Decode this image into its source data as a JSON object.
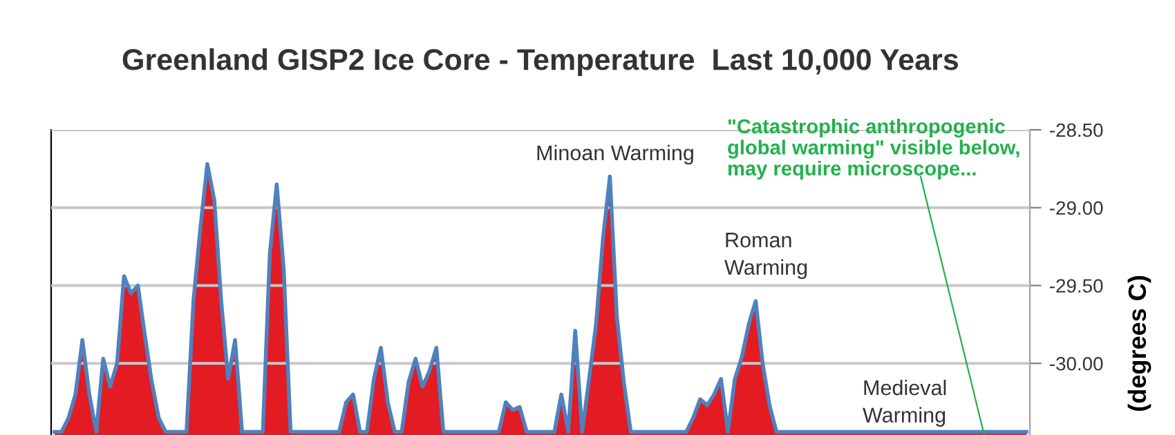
{
  "chart_data": {
    "type": "area",
    "title": "Greenland GISP2 Ice Core - Temperature  Last 10,000 Years",
    "ylabel": "(degrees C)",
    "categories": [
      null,
      null,
      null,
      null,
      null,
      null,
      null,
      null,
      null,
      null,
      null,
      null,
      null,
      null,
      null,
      null,
      null,
      null,
      null,
      null,
      null,
      null,
      null,
      null,
      null,
      null,
      null,
      null,
      null,
      null,
      null,
      null,
      null,
      null,
      null,
      null,
      null,
      null,
      null,
      null,
      null,
      null,
      null,
      null,
      null,
      null,
      null,
      null,
      null,
      null,
      null,
      null,
      null,
      null,
      null,
      null,
      null,
      null,
      null,
      null,
      null,
      null,
      null,
      null,
      null,
      null,
      null,
      null,
      null,
      null,
      null,
      null,
      null,
      null,
      null,
      null,
      null,
      null,
      null,
      null,
      null,
      null,
      null,
      null,
      null,
      null,
      null,
      null,
      null,
      null,
      null,
      null,
      null,
      null,
      null,
      null,
      null,
      null,
      null,
      null,
      null,
      null,
      null,
      null,
      null,
      null,
      null,
      null,
      null,
      null,
      null,
      null,
      null,
      null,
      null,
      null,
      null,
      null,
      null,
      null,
      null,
      null,
      null,
      null,
      null,
      null,
      null,
      null,
      null,
      null,
      null,
      null,
      null,
      null,
      null,
      null,
      null,
      null,
      null,
      null,
      null
    ],
    "series": [
      {
        "color": "#e31b23",
        "values": [
          -30.44,
          -30.44,
          -30.35,
          -30.2,
          -29.85,
          -30.2,
          -30.44,
          -29.97,
          -30.15,
          -30.0,
          -29.44,
          -29.55,
          -29.5,
          -29.82,
          -30.12,
          -30.35,
          -30.44,
          -30.44,
          -30.44,
          -30.44,
          -29.6,
          -29.13,
          -28.72,
          -28.95,
          -29.6,
          -30.1,
          -29.85,
          -30.44,
          -30.44,
          -30.44,
          -30.44,
          -29.3,
          -28.85,
          -29.39,
          -30.44,
          -30.44,
          -30.44,
          -30.44,
          -30.44,
          -30.44,
          -30.44,
          -30.44,
          -30.25,
          -30.2,
          -30.44,
          -30.44,
          -30.1,
          -29.9,
          -30.25,
          -30.44,
          -30.44,
          -30.12,
          -29.97,
          -30.15,
          -30.05,
          -29.9,
          -30.44,
          -30.44,
          -30.44,
          -30.44,
          -30.44,
          -30.44,
          -30.44,
          -30.44,
          -30.44,
          -30.25,
          -30.3,
          -30.28,
          -30.44,
          -30.44,
          -30.44,
          -30.44,
          -30.44,
          -30.2,
          -30.44,
          -29.79,
          -30.44,
          -30.1,
          -29.75,
          -29.2,
          -28.8,
          -29.7,
          -30.12,
          -30.44,
          -30.44,
          -30.44,
          -30.44,
          -30.44,
          -30.44,
          -30.44,
          -30.44,
          -30.44,
          -30.35,
          -30.23,
          -30.27,
          -30.2,
          -30.1,
          -30.44,
          -30.1,
          -29.96,
          -29.75,
          -29.6,
          -30.0,
          -30.27,
          -30.44,
          -30.44,
          -30.44,
          -30.44,
          -30.44,
          -30.44,
          -30.44,
          -30.44,
          -30.44,
          -30.44,
          -30.44,
          -30.44,
          -30.44,
          -30.44,
          -30.44,
          -30.44,
          -30.44,
          -30.44,
          -30.44,
          -30.44,
          -30.44,
          -30.44,
          -30.44,
          -30.44,
          -30.44,
          -30.44,
          -30.44,
          -30.44,
          -30.44,
          -30.44,
          -30.44,
          -30.44,
          -30.44,
          -30.44,
          -30.44,
          -30.44,
          -30.44
        ]
      },
      {
        "type": "line",
        "color": "#4f81bd",
        "values": [
          -30.44,
          -30.44,
          -30.35,
          -30.2,
          -29.85,
          -30.2,
          -30.44,
          -29.97,
          -30.15,
          -30.0,
          -29.44,
          -29.55,
          -29.5,
          -29.82,
          -30.12,
          -30.35,
          -30.44,
          -30.44,
          -30.44,
          -30.44,
          -29.6,
          -29.13,
          -28.72,
          -28.95,
          -29.6,
          -30.1,
          -29.85,
          -30.44,
          -30.44,
          -30.44,
          -30.44,
          -29.3,
          -28.85,
          -29.39,
          -30.44,
          -30.44,
          -30.44,
          -30.44,
          -30.44,
          -30.44,
          -30.44,
          -30.44,
          -30.25,
          -30.2,
          -30.44,
          -30.44,
          -30.1,
          -29.9,
          -30.25,
          -30.44,
          -30.44,
          -30.12,
          -29.97,
          -30.15,
          -30.05,
          -29.9,
          -30.44,
          -30.44,
          -30.44,
          -30.44,
          -30.44,
          -30.44,
          -30.44,
          -30.44,
          -30.44,
          -30.25,
          -30.3,
          -30.28,
          -30.44,
          -30.44,
          -30.44,
          -30.44,
          -30.44,
          -30.2,
          -30.44,
          -29.79,
          -30.44,
          -30.1,
          -29.75,
          -29.2,
          -28.8,
          -29.7,
          -30.12,
          -30.44,
          -30.44,
          -30.44,
          -30.44,
          -30.44,
          -30.44,
          -30.44,
          -30.44,
          -30.44,
          -30.35,
          -30.23,
          -30.27,
          -30.2,
          -30.1,
          -30.44,
          -30.1,
          -29.96,
          -29.75,
          -29.6,
          -30.0,
          -30.27,
          -30.44,
          -30.44,
          -30.44,
          -30.44,
          -30.44,
          -30.44,
          -30.44,
          -30.44,
          -30.44,
          -30.44,
          -30.44,
          -30.44,
          -30.44,
          -30.44,
          -30.44,
          -30.44,
          -30.44,
          -30.44,
          -30.44,
          -30.44,
          -30.44,
          -30.44,
          -30.44,
          -30.44,
          -30.44,
          -30.44,
          -30.44,
          -30.44,
          -30.44,
          -30.44,
          -30.44,
          -30.44,
          -30.44,
          -30.44,
          -30.44,
          -30.44,
          -30.44
        ]
      }
    ],
    "ylim": [
      -30.46,
      -28.5
    ],
    "yticks": [
      {
        "value": -28.5,
        "label": "-28.50"
      },
      {
        "value": -29.0,
        "label": "-29.00"
      },
      {
        "value": -29.5,
        "label": "-29.50"
      },
      {
        "value": -30.0,
        "label": "-30.00"
      }
    ],
    "grid": "y",
    "tick_labels": "y",
    "annotations": [
      "Minoan Warming",
      "Roman\nWarming",
      "Medieval\nWarming",
      "\"Catastrophic anthropogenic\nglobal warming\" visible below,\nmay require microscope..."
    ]
  }
}
